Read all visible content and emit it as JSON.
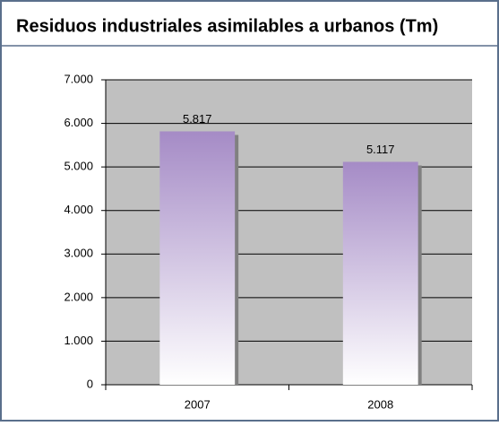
{
  "chart_data": {
    "type": "bar",
    "title": "Residuos industriales asimilables a urbanos (Tm)",
    "categories": [
      "2007",
      "2008"
    ],
    "values": [
      5817,
      5117
    ],
    "value_labels": [
      "5.817",
      "5.117"
    ],
    "color": "#a58bc6",
    "ylim": [
      0,
      7000
    ],
    "yticks": [
      0,
      {
        "value": 1000,
        "label": "1.000"
      },
      {
        "value": 2000,
        "label": "2.000"
      },
      {
        "value": 3000,
        "label": "3.000"
      },
      {
        "value": 4000,
        "label": "4.000"
      },
      {
        "value": 5000,
        "label": "5.000"
      },
      {
        "value": 6000,
        "label": "6.000"
      },
      {
        "value": 7000,
        "label": "7.000"
      }
    ],
    "grid": true
  }
}
